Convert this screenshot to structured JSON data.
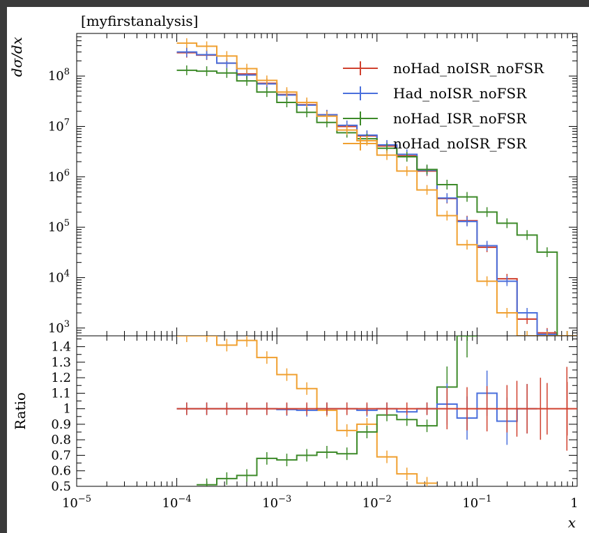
{
  "chart_data": [
    {
      "type": "line",
      "panel": "main",
      "title": "[myfirstanalysis]",
      "ylabel": "dσ/dx",
      "xlabel": "",
      "xscale": "log",
      "yscale": "log",
      "xlim": [
        1e-05,
        1
      ],
      "ylim": [
        700,
        700000000
      ],
      "ytick_labels": [
        "10^3",
        "10^4",
        "10^5",
        "10^6",
        "10^7",
        "10^8"
      ],
      "ytick_values": [
        1000,
        10000,
        100000,
        1000000,
        10000000,
        100000000
      ],
      "legend_position": "top-right",
      "bin_edges": [
        0.0001,
        0.000158,
        0.000251,
        0.000398,
        0.000631,
        0.001,
        0.00158,
        0.00251,
        0.00398,
        0.00631,
        0.01,
        0.0158,
        0.0251,
        0.0398,
        0.0631,
        0.1,
        0.158,
        0.251,
        0.398,
        0.631,
        1.0
      ],
      "series": [
        {
          "name": "noHad_noISR_noFSR",
          "color": "#d0402e",
          "values": [
            290000000,
            260000000,
            180000000,
            110000000,
            72000000,
            43000000,
            27000000,
            17000000,
            10000000,
            6500000,
            4100000,
            2600000,
            1300000,
            370000,
            135000,
            40000,
            9500,
            1500,
            800,
            700
          ]
        },
        {
          "name": "Had_noISR_noFSR",
          "color": "#4a6fdc",
          "values": [
            300000000,
            265000000,
            180000000,
            105000000,
            70000000,
            42000000,
            26500000,
            17000000,
            10500000,
            6700000,
            4300000,
            2800000,
            1350000,
            380000,
            130000,
            43000,
            8500,
            2000,
            750,
            700
          ]
        },
        {
          "name": "noHad_ISR_noFSR",
          "color": "#3d8a29",
          "values": [
            130000000,
            125000000,
            115000000,
            80000000,
            48000000,
            30000000,
            19000000,
            12000000,
            7500000,
            5700000,
            3700000,
            2500000,
            1400000,
            700000,
            400000,
            200000,
            120000,
            70000,
            32000,
            700
          ]
        },
        {
          "name": "noHad_noISR_FSR",
          "color": "#f0a030",
          "values": [
            450000000,
            390000000,
            250000000,
            140000000,
            82000000,
            48000000,
            30000000,
            16000000,
            8500000,
            5200000,
            2700000,
            1300000,
            550000,
            170000,
            45000,
            8500,
            2000,
            700,
            700,
            700
          ]
        }
      ]
    },
    {
      "type": "line",
      "panel": "ratio",
      "ylabel": "Ratio",
      "xlabel": "x",
      "xscale": "log",
      "xlim": [
        1e-05,
        1
      ],
      "ylim": [
        0.5,
        1.47
      ],
      "xtick_labels": [
        "10^-5",
        "10^-4",
        "10^-3",
        "10^-2",
        "10^-1",
        "1"
      ],
      "xtick_values": [
        1e-05,
        0.0001,
        0.001,
        0.01,
        0.1,
        1
      ],
      "ytick_labels": [
        "0.5",
        "0.6",
        "0.7",
        "0.8",
        "0.9",
        "1",
        "1.1",
        "1.2",
        "1.3",
        "1.4"
      ],
      "ytick_values": [
        0.5,
        0.6,
        0.7,
        0.8,
        0.9,
        1.0,
        1.1,
        1.2,
        1.3,
        1.4
      ],
      "bin_edges": [
        0.0001,
        0.000158,
        0.000251,
        0.000398,
        0.000631,
        0.001,
        0.00158,
        0.00251,
        0.00398,
        0.00631,
        0.01,
        0.0158,
        0.0251,
        0.0398,
        0.0631,
        0.1,
        0.158,
        0.251,
        0.398,
        0.631,
        1.0
      ],
      "series": [
        {
          "name": "noHad_noISR_noFSR",
          "color": "#d0402e",
          "values": [
            1.0,
            1.0,
            1.0,
            1.0,
            1.0,
            1.0,
            1.0,
            1.0,
            1.0,
            1.0,
            1.0,
            1.0,
            1.0,
            1.0,
            1.0,
            1.0,
            1.0,
            1.0,
            1.0,
            1.0
          ]
        },
        {
          "name": "Had_noISR_noFSR",
          "color": "#4a6fdc",
          "values": [
            1.0,
            1.0,
            1.0,
            1.0,
            1.0,
            0.995,
            0.99,
            1.0,
            1.0,
            0.99,
            1.0,
            0.98,
            1.0,
            1.03,
            0.94,
            1.1,
            0.92,
            1.0,
            null,
            null
          ]
        },
        {
          "name": "noHad_ISR_noFSR",
          "color": "#3d8a29",
          "values": [
            null,
            0.51,
            0.55,
            0.57,
            0.68,
            0.67,
            0.7,
            0.72,
            0.71,
            0.85,
            0.96,
            0.93,
            0.89,
            1.14,
            1.47,
            null,
            null,
            null,
            null,
            null
          ]
        },
        {
          "name": "noHad_noISR_FSR",
          "color": "#f0a030",
          "values": [
            1.47,
            1.47,
            1.41,
            1.44,
            1.33,
            1.22,
            1.13,
            0.99,
            0.86,
            0.9,
            0.69,
            0.58,
            0.52,
            null,
            null,
            null,
            null,
            null,
            null,
            null
          ]
        }
      ]
    }
  ]
}
